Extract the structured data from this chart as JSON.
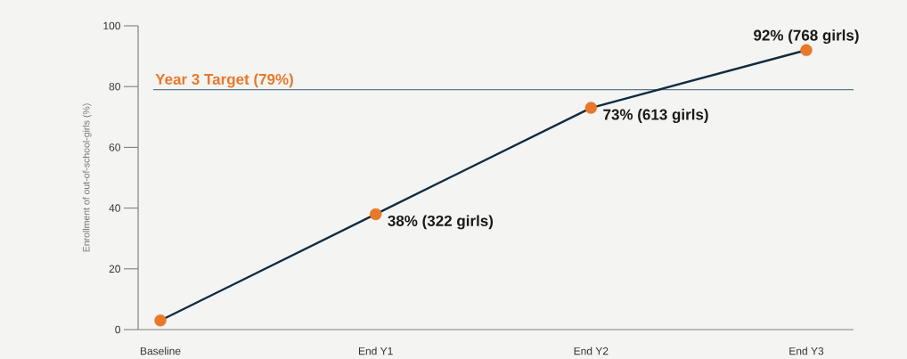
{
  "chart_data": {
    "type": "line",
    "ylabel": "Enrollment of out-of-school-girls (%)",
    "categories": [
      "Baseline",
      "End Y1",
      "End Y2",
      "End Y3"
    ],
    "values": [
      3,
      38,
      73,
      92
    ],
    "value_labels": [
      null,
      "38% (322 girls)",
      "73% (613 girls)",
      "92% (768 girls)"
    ],
    "color": "#0f2b40",
    "colors": [
      "#e8782a",
      "#e8782a",
      "#e8782a",
      "#e8782a"
    ],
    "ylim": [
      0,
      100
    ],
    "yticks": [
      0,
      20,
      40,
      60,
      80,
      100
    ],
    "ref_lines": [
      {
        "axis": "y",
        "value": 79,
        "label": "Year 3 Target (79%)",
        "color": "#5a7a90"
      }
    ],
    "marker": "circle",
    "line_style": "solid"
  }
}
